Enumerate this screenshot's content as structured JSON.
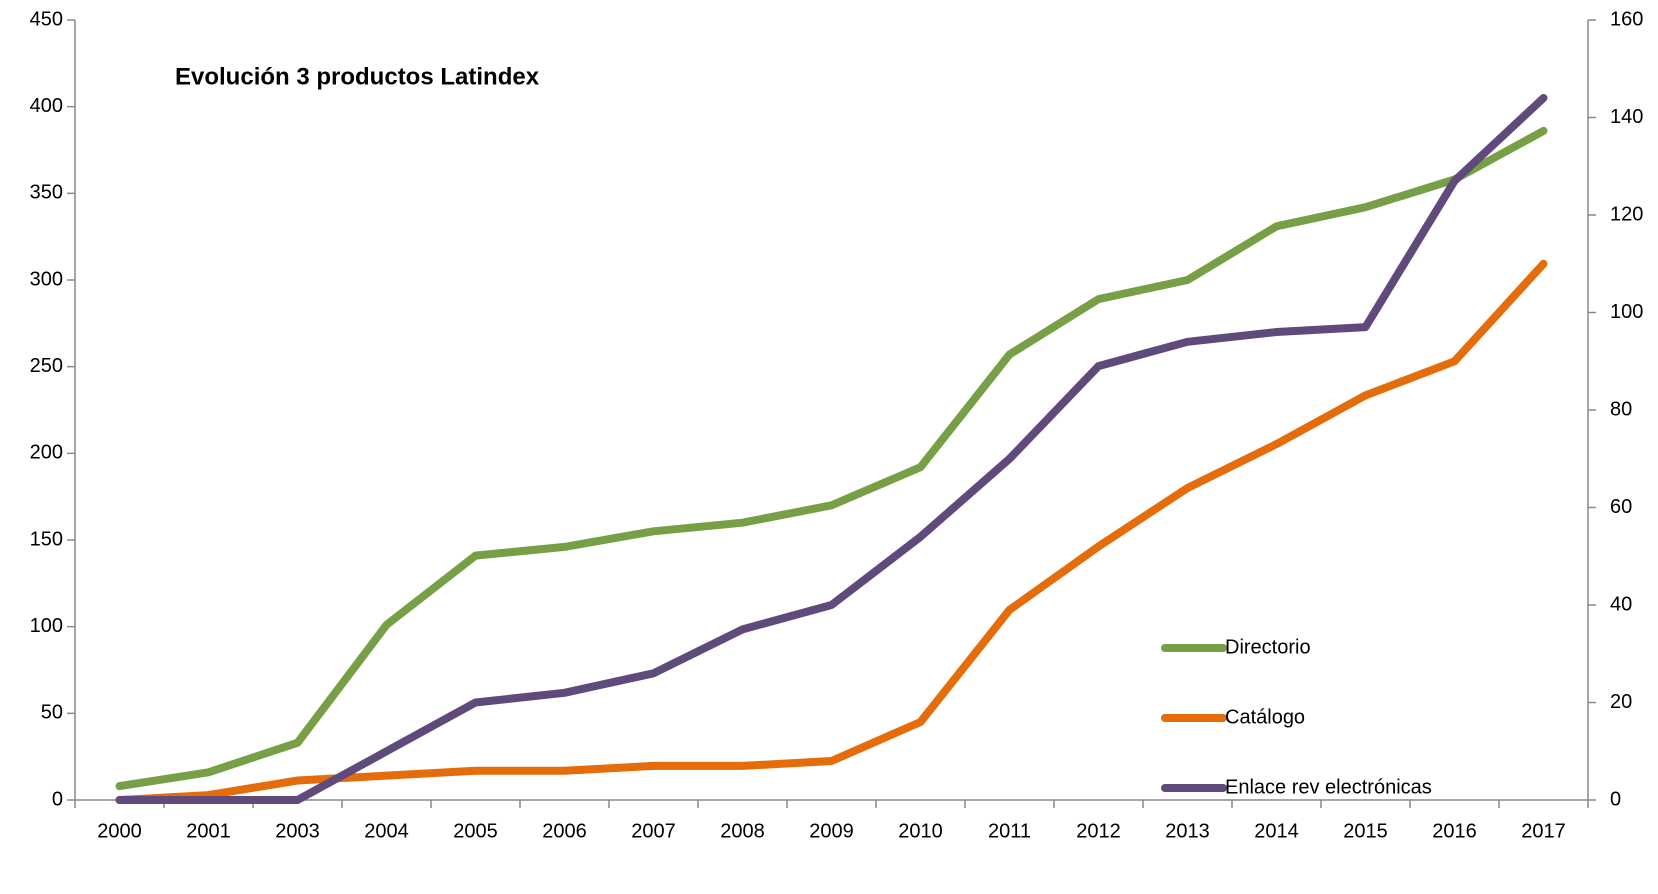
{
  "chart_data": {
    "type": "line",
    "title": "Evolución 3 productos Latindex",
    "categories": [
      "2000",
      "2001",
      "2003",
      "2004",
      "2005",
      "2006",
      "2007",
      "2008",
      "2009",
      "2010",
      "2011",
      "2012",
      "2013",
      "2014",
      "2015",
      "2016",
      "2017"
    ],
    "series": [
      {
        "name": "Directorio",
        "color": "#77a046",
        "values": [
          8,
          16,
          33,
          101,
          141,
          146,
          155,
          160,
          170,
          192,
          257,
          289,
          300,
          331,
          342,
          358,
          386
        ]
      },
      {
        "name": "Catálogo",
        "color": "#e46c0a",
        "axis": "y2",
        "values": [
          0,
          1,
          4,
          5,
          6,
          6,
          7,
          7,
          8,
          16,
          39,
          52,
          64,
          73,
          83,
          90,
          110
        ]
      },
      {
        "name": "Enlace rev electrónicas",
        "color": "#604a7b",
        "axis": "y2",
        "values": [
          0,
          0,
          0,
          10,
          20,
          22,
          26,
          35,
          40,
          54,
          70,
          89,
          94,
          96,
          97,
          127,
          144
        ]
      }
    ],
    "ylim": [
      0,
      450
    ],
    "yticks": [
      0,
      50,
      100,
      150,
      200,
      250,
      300,
      350,
      400,
      450
    ],
    "y2lim": [
      0,
      160
    ],
    "y2ticks": [
      0,
      20,
      40,
      60,
      80,
      100,
      120,
      140,
      160
    ],
    "grid": false,
    "legend": "lower-right"
  }
}
